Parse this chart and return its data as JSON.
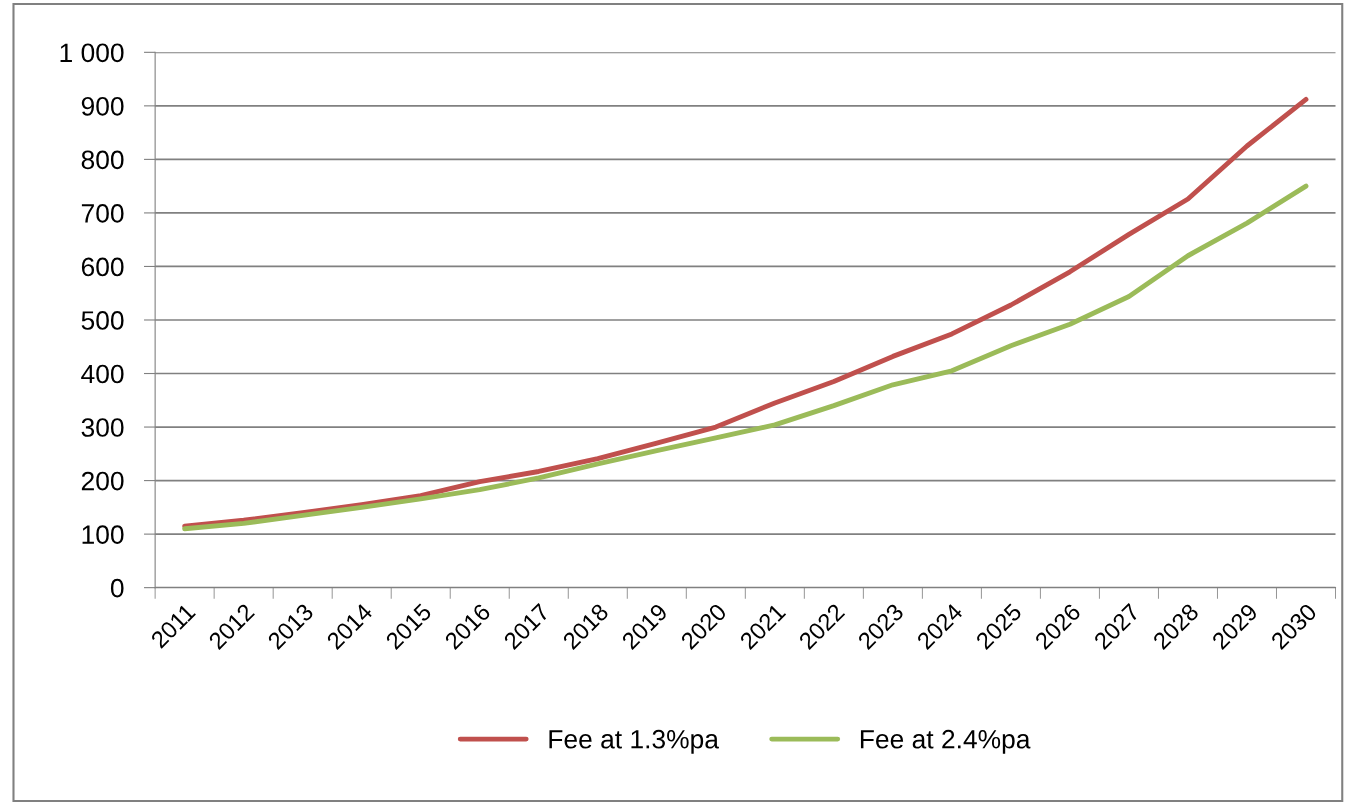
{
  "chart_data": {
    "type": "line",
    "categories": [
      "2011",
      "2012",
      "2013",
      "2014",
      "2015",
      "2016",
      "2017",
      "2018",
      "2019",
      "2020",
      "2021",
      "2022",
      "2023",
      "2024",
      "2025",
      "2026",
      "2027",
      "2028",
      "2029",
      "2030"
    ],
    "series": [
      {
        "name": "Fee at 1.3%pa",
        "color": "#c0504d",
        "values": [
          115,
          126,
          140,
          155,
          172,
          198,
          217,
          241,
          270,
          300,
          345,
          385,
          432,
          474,
          528,
          590,
          660,
          726,
          825,
          912
        ]
      },
      {
        "name": "Fee at 2.4%pa",
        "color": "#9bbb59",
        "values": [
          110,
          120,
          135,
          150,
          166,
          183,
          205,
          231,
          256,
          280,
          304,
          340,
          379,
          405,
          452,
          492,
          544,
          620,
          681,
          750
        ]
      }
    ],
    "ylim": [
      0,
      1000
    ],
    "yticks": [
      0,
      100,
      200,
      300,
      400,
      500,
      600,
      700,
      800,
      900,
      {
        "value": 1000,
        "label": "1 000"
      }
    ],
    "grid": "y",
    "legend": "bottom",
    "marker": "none",
    "line_style": "solid"
  }
}
